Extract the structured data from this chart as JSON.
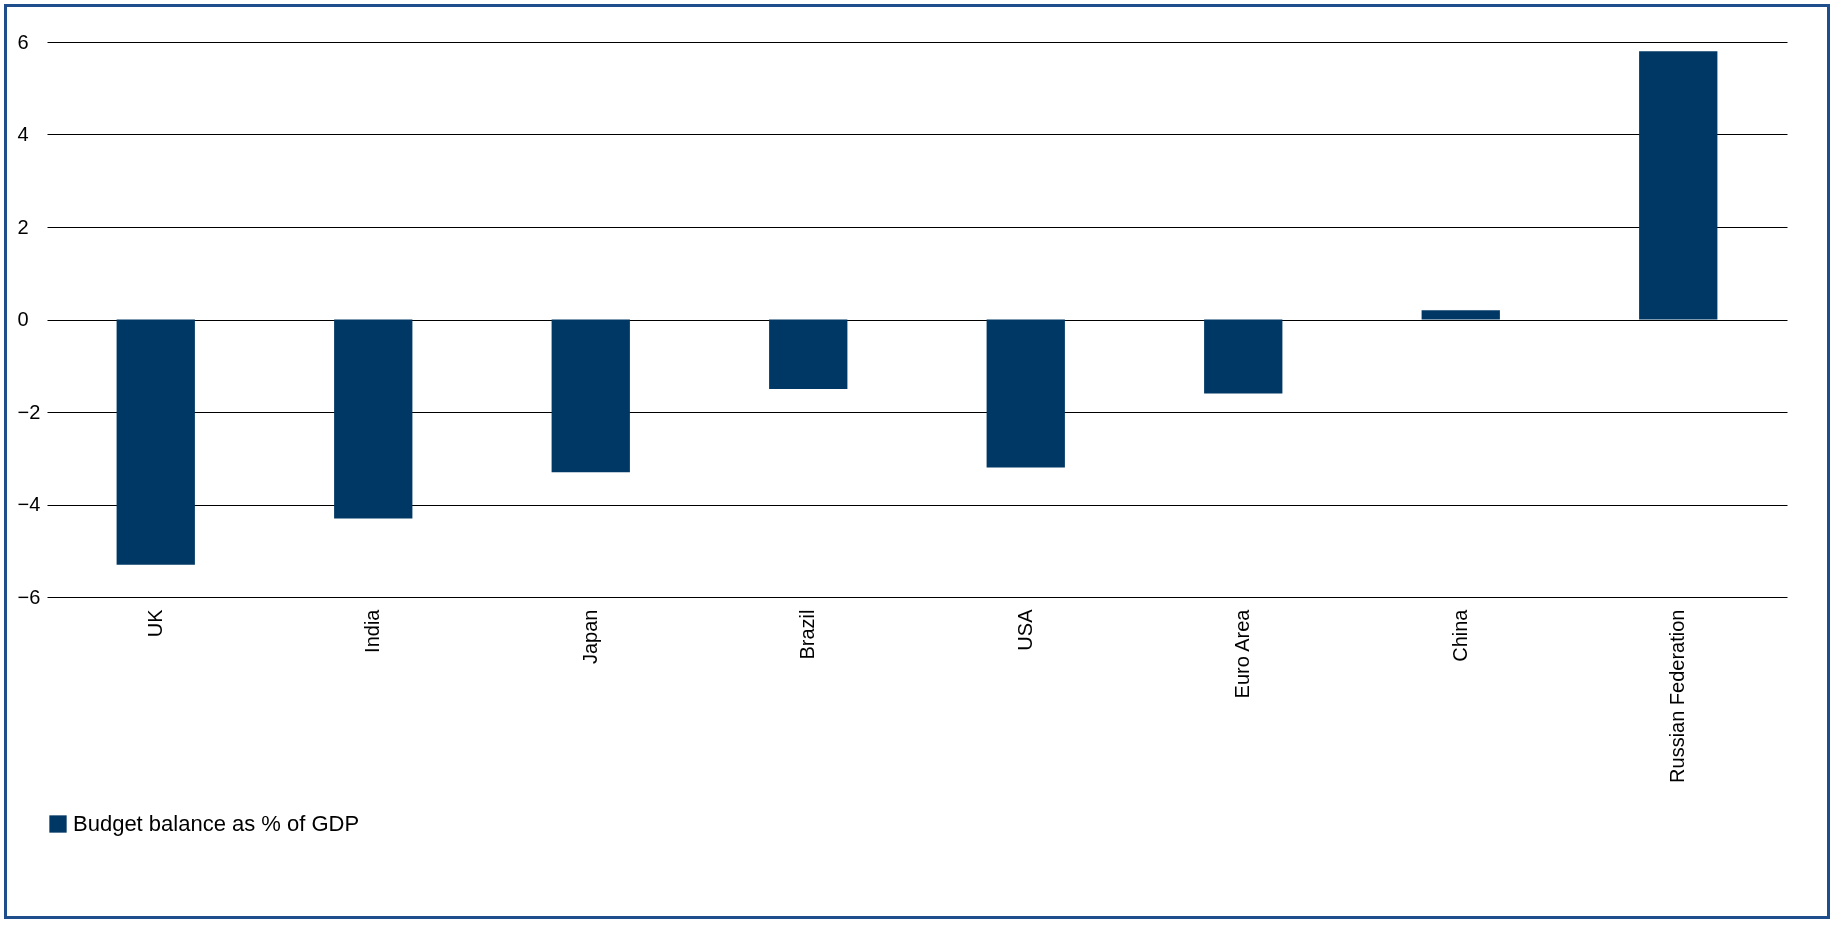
{
  "chart_data": {
    "type": "bar",
    "categories": [
      "UK",
      "India",
      "Japan",
      "Brazil",
      "USA",
      "Euro Area",
      "China",
      "Russian Federation"
    ],
    "series": [
      {
        "name": "Budget balance as % of GDP",
        "color": "#003865",
        "values": [
          -5.3,
          -4.3,
          -3.3,
          -1.5,
          -3.2,
          -1.6,
          0.2,
          5.8
        ]
      }
    ],
    "ylim": [
      -6,
      6
    ],
    "yticks": [
      -6,
      -4,
      -2,
      0,
      2,
      4,
      6
    ],
    "grid": "y",
    "legend": "bottom"
  }
}
